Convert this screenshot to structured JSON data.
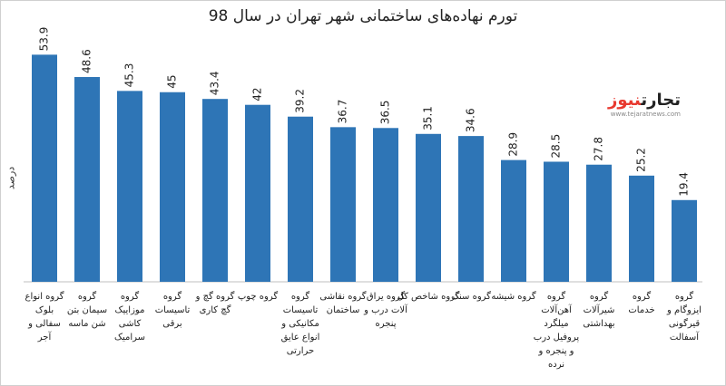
{
  "title": "تورم نهاده‌های ساختمانی شهر تهران در سال 98",
  "logo": {
    "main_dark": "تجارت",
    "main_accent": "نیوز",
    "url": "www.tejaratnews.com"
  },
  "chart_data": {
    "type": "bar",
    "title": "تورم نهاده‌های ساختمانی شهر تهران در سال 98",
    "ylabel": "درصد",
    "xlabel": "",
    "ylim": [
      0,
      60
    ],
    "grid": false,
    "bar_color": "#2e75b6",
    "categories": [
      [
        "گروه انواع",
        "بلوک",
        "سفالی و",
        "آجر"
      ],
      [
        "گروه",
        "سیمان بتن",
        "شن ماسه"
      ],
      [
        "گروه",
        "موزاییک",
        "کاشی",
        "سرامیک"
      ],
      [
        "گروه",
        "تاسیسات",
        "برقی"
      ],
      [
        "گروه گچ و",
        "گچ کاری"
      ],
      [
        "گروه چوپ"
      ],
      [
        "گروه",
        "تاسیسات",
        "مکانیکی و",
        "انواع عایق",
        "حرارتی"
      ],
      [
        "گروه نقاشی",
        "ساختمان"
      ],
      [
        "گروه یراق",
        "آلات درب و",
        "پنجره"
      ],
      [
        "گروه شاخص کل"
      ],
      [
        "گروه سنگ"
      ],
      [
        "گروه شیشه"
      ],
      [
        "گروه",
        "آهن‌آلات",
        "میلگرد",
        "پروفیل درب",
        "و پنجره و",
        "نرده"
      ],
      [
        "گروه",
        "شیرآلات",
        "بهداشتی"
      ],
      [
        "گروه",
        "خدمات"
      ],
      [
        "گروه",
        "ایزوگام و",
        "قیرگونی",
        "آسفالت"
      ]
    ],
    "values": [
      53.9,
      48.6,
      45.3,
      45,
      43.4,
      42,
      39.2,
      36.7,
      36.5,
      35.1,
      34.6,
      28.9,
      28.5,
      27.8,
      25.2,
      19.4
    ],
    "value_labels": [
      "53.9",
      "48.6",
      "45.3",
      "45",
      "43.4",
      "42",
      "39.2",
      "36.7",
      "36.5",
      "35.1",
      "34.6",
      "28.9",
      "28.5",
      "27.8",
      "25.2",
      "19.4"
    ]
  }
}
